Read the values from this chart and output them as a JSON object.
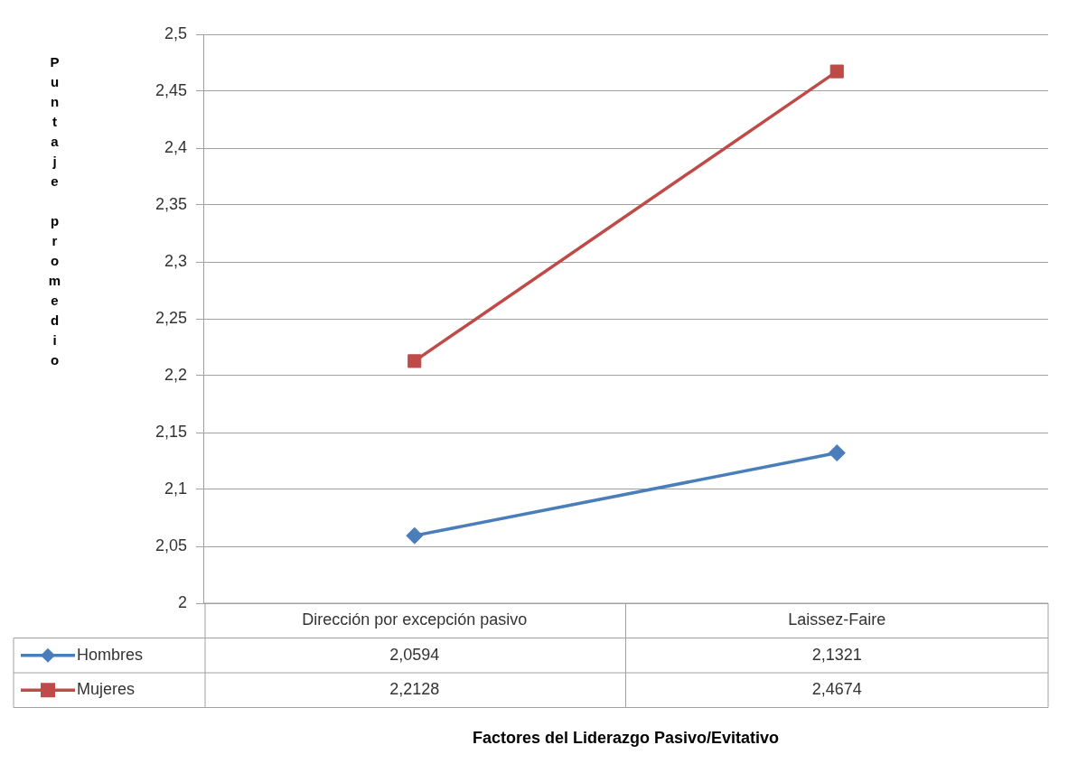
{
  "chart_data": {
    "type": "line",
    "annotations": [
      "Factores del Liderazgo Pasivo/Evitativo",
      "Puntaje promedio"
    ],
    "categories": [
      "Dirección por excepción pasivo",
      "Laissez-Faire"
    ],
    "series": [
      {
        "name": "Hombres",
        "color": "#4a7ebb",
        "marker": "diamond",
        "values": [
          2.0594,
          2.1321
        ],
        "value_labels": [
          "2,0594",
          "2,1321"
        ]
      },
      {
        "name": "Mujeres",
        "color": "#be4b48",
        "marker": "square",
        "values": [
          2.2128,
          2.4674
        ],
        "value_labels": [
          "2,2128",
          "2,4674"
        ]
      }
    ],
    "ylim": [
      2,
      2.5
    ],
    "yticks": [
      {
        "value": 2,
        "label": "2"
      },
      {
        "value": 2.05,
        "label": "2,05"
      },
      {
        "value": 2.1,
        "label": "2,1"
      },
      {
        "value": 2.15,
        "label": "2,15"
      },
      {
        "value": 2.2,
        "label": "2,2"
      },
      {
        "value": 2.25,
        "label": "2,25"
      },
      {
        "value": 2.3,
        "label": "2,3"
      },
      {
        "value": 2.35,
        "label": "2,35"
      },
      {
        "value": 2.4,
        "label": "2,4"
      },
      {
        "value": 2.45,
        "label": "2,45"
      },
      {
        "value": 2.5,
        "label": "2,5"
      }
    ],
    "grid": "y",
    "legend": "bottom",
    "line_style": "solid"
  }
}
